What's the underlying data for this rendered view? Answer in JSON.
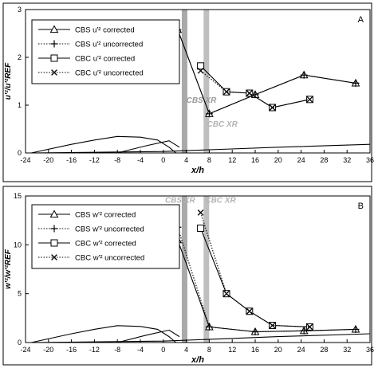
{
  "chart_data": [
    {
      "type": "line",
      "panel_label": "A",
      "ylabel": "u'²/u'²REF",
      "xlabel": "x/h",
      "xlim": [
        -24,
        36
      ],
      "ylim": [
        0,
        3
      ],
      "xticks": [
        "-24",
        "-20",
        "-16",
        "-12",
        "-8",
        "-4",
        "0",
        "4",
        "8",
        "12",
        "16",
        "20",
        "24",
        "28",
        "32",
        "36"
      ],
      "yticks": [
        "0",
        "1",
        "2",
        "3"
      ],
      "legend_position": "top-left",
      "annotations": [
        {
          "text": "CBS XR",
          "x": 4,
          "y": 1.05,
          "color": "#9a9a9a"
        },
        {
          "text": "CBC XR",
          "x": 7.6,
          "y": 0.55,
          "color": "#b4b4b4"
        }
      ],
      "bands": [
        {
          "x": 3.7,
          "color": "#9a9a9a"
        },
        {
          "x": 7.5,
          "color": "#b4b4b4"
        }
      ],
      "series": [
        {
          "name": "CBS u'² corrected",
          "marker": "triangle",
          "dash": "solid",
          "x": [
            2.5,
            8,
            16,
            24.5,
            33.5
          ],
          "y": [
            2.58,
            0.82,
            1.22,
            1.63,
            1.46
          ]
        },
        {
          "name": "CBS u'² uncorrected",
          "marker": "plus",
          "dash": "dotted",
          "x": [
            2.5,
            8,
            16,
            24.5,
            33.5
          ],
          "y": [
            2.58,
            0.82,
            1.22,
            1.63,
            1.46
          ]
        },
        {
          "name": "CBC u'² corrected",
          "marker": "square",
          "dash": "solid",
          "x": [
            6.5,
            11,
            15,
            19,
            25.5
          ],
          "y": [
            1.82,
            1.28,
            1.25,
            0.95,
            1.12
          ]
        },
        {
          "name": "CBC u'² uncorrected",
          "marker": "x",
          "dash": "dotted",
          "x": [
            6.5,
            11,
            15,
            19,
            25.5
          ],
          "y": [
            1.72,
            1.28,
            1.25,
            0.95,
            1.12
          ]
        }
      ]
    },
    {
      "type": "line",
      "panel_label": "B",
      "ylabel": "w'²/w'²REF",
      "xlabel": "x/h",
      "xlim": [
        -24,
        36
      ],
      "ylim": [
        0,
        15
      ],
      "xticks": [
        "-24",
        "-20",
        "-16",
        "-12",
        "-8",
        "-4",
        "0",
        "4",
        "8",
        "12",
        "16",
        "20",
        "24",
        "28",
        "32",
        "36"
      ],
      "yticks": [
        "0",
        "5",
        "10",
        "15"
      ],
      "legend_position": "top-left",
      "annotations": [
        {
          "text": "CBS XR",
          "x": 0.3,
          "y": 14.3,
          "color": "#b4b4b4"
        },
        {
          "text": "CBC XR",
          "x": 7.3,
          "y": 14.3,
          "color": "#b4b4b4"
        }
      ],
      "bands": [
        {
          "x": 3.7,
          "color": "#9a9a9a"
        },
        {
          "x": 7.5,
          "color": "#b4b4b4"
        }
      ],
      "series": [
        {
          "name": "CBS w'² corrected",
          "marker": "triangle",
          "dash": "solid",
          "x": [
            2.5,
            8,
            16,
            24.5,
            33.5
          ],
          "y": [
            10.5,
            1.6,
            1.1,
            1.2,
            1.35
          ]
        },
        {
          "name": "CBS w'² uncorrected",
          "marker": "plus",
          "dash": "dotted",
          "x": [
            2.5,
            8,
            16,
            24.5,
            33.5
          ],
          "y": [
            11.8,
            1.6,
            1.1,
            1.2,
            1.35
          ]
        },
        {
          "name": "CBC w'² corrected",
          "marker": "square",
          "dash": "solid",
          "x": [
            6.5,
            11,
            15,
            19,
            25.5
          ],
          "y": [
            11.7,
            5.0,
            3.2,
            1.75,
            1.6
          ]
        },
        {
          "name": "CBC w'² uncorrected",
          "marker": "x",
          "dash": "dotted",
          "x": [
            6.5,
            11,
            15,
            19,
            25.5
          ],
          "y": [
            13.3,
            5.0,
            3.2,
            1.75,
            1.6
          ]
        }
      ]
    }
  ]
}
